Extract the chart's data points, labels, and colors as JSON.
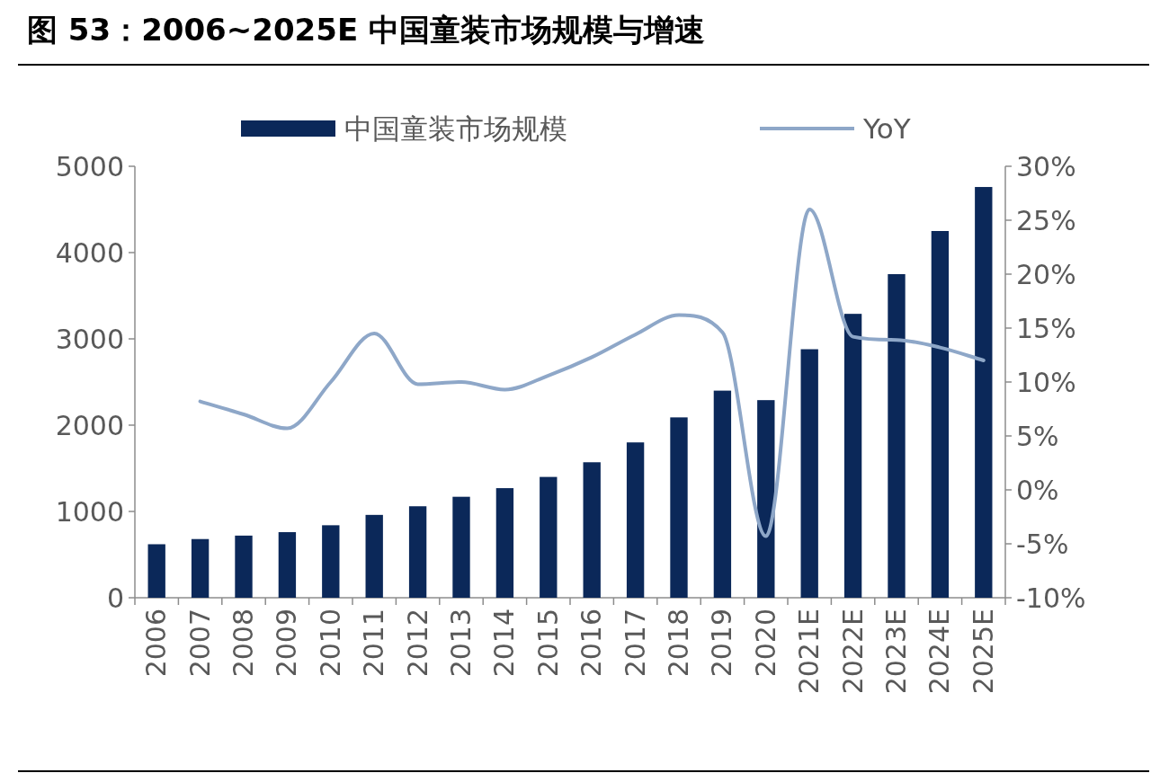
{
  "chart_data": {
    "type": "bar",
    "title": "图 53：2006~2025E 中国童装市场规模与增速",
    "categories": [
      "2006",
      "2007",
      "2008",
      "2009",
      "2010",
      "2011",
      "2012",
      "2013",
      "2014",
      "2015",
      "2016",
      "2017",
      "2018",
      "2019",
      "2020",
      "2021E",
      "2022E",
      "2023E",
      "2024E",
      "2025E"
    ],
    "series": [
      {
        "name": "中国童装市场规模",
        "color": "#0b2859",
        "values": [
          620,
          680,
          720,
          760,
          840,
          960,
          1060,
          1170,
          1270,
          1400,
          1570,
          1800,
          2090,
          2400,
          2290,
          2880,
          3290,
          3750,
          4250,
          4760
        ]
      },
      {
        "name": "YoY",
        "type": "line",
        "axis": "y2",
        "color": "#8ea7c8",
        "values": [
          null,
          8.2,
          7.0,
          5.7,
          10.0,
          14.5,
          9.8,
          10.0,
          9.3,
          10.6,
          12.3,
          14.4,
          16.2,
          14.6,
          -4.3,
          26.0,
          14.2,
          13.9,
          13.2,
          12.0
        ]
      }
    ],
    "ylim": [
      0,
      5000
    ],
    "yticks": [
      0,
      1000,
      2000,
      3000,
      4000,
      5000
    ],
    "y2lim": [
      -10,
      30
    ],
    "y2ticks": [
      {
        "value": -10,
        "label": "-10%"
      },
      {
        "value": -5,
        "label": "-5%"
      },
      {
        "value": 0,
        "label": "0%"
      },
      {
        "value": 5,
        "label": "5%"
      },
      {
        "value": 10,
        "label": "10%"
      },
      {
        "value": 15,
        "label": "15%"
      },
      {
        "value": 20,
        "label": "20%"
      },
      {
        "value": 25,
        "label": "25%"
      },
      {
        "value": 30,
        "label": "30%"
      }
    ],
    "grid": false,
    "legend": "top"
  }
}
